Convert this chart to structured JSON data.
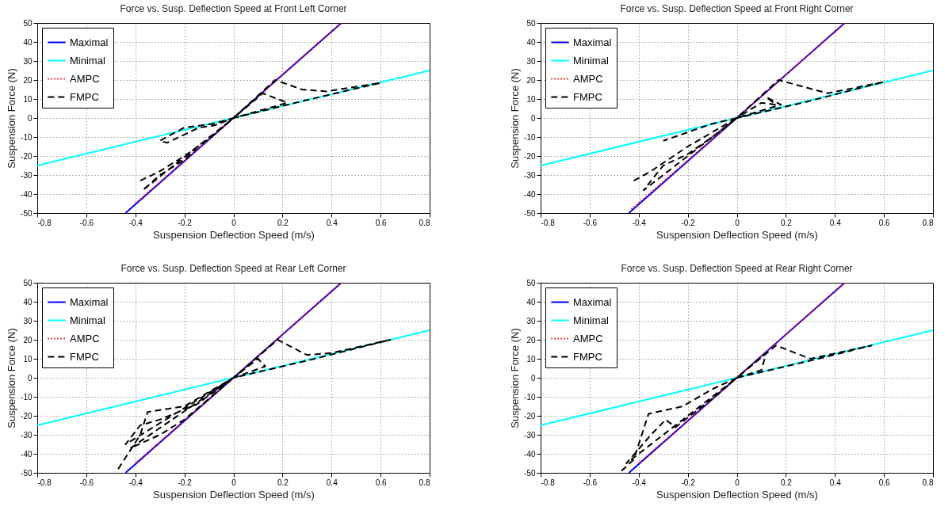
{
  "chart_data": [
    {
      "type": "line",
      "title": "Force vs. Susp. Deflection Speed at Front Left Corner",
      "xlabel": "Suspension Deflection Speed (m/s)",
      "ylabel": "Suspension Force (N)",
      "xlim": [
        -0.8,
        0.8
      ],
      "ylim": [
        -50,
        50
      ],
      "xticks": [
        -0.8,
        -0.6,
        -0.4,
        -0.2,
        0,
        0.2,
        0.4,
        0.6,
        0.8
      ],
      "yticks": [
        -50,
        -40,
        -30,
        -20,
        -10,
        0,
        10,
        20,
        30,
        40,
        50
      ],
      "grid": true,
      "legend": "top left",
      "series": [
        {
          "name": "Maximal",
          "color": "#0000ff",
          "line_style": "solid",
          "x": [
            -0.44,
            0.44
          ],
          "values": [
            -50,
            50
          ]
        },
        {
          "name": "Minimal",
          "color": "#00ffff",
          "line_style": "solid",
          "x": [
            -0.8,
            0.8
          ],
          "values": [
            -25,
            25
          ]
        },
        {
          "name": "AMPC",
          "color": "#ff0000",
          "line_style": "dotted",
          "x": [
            -0.4,
            0,
            0.44
          ],
          "values": [
            -45,
            0,
            50
          ]
        },
        {
          "name": "FMPC",
          "color": "#000000",
          "line_style": "dashed",
          "x": [
            -0.38,
            -0.3,
            -0.2,
            -0.1,
            0,
            0.17,
            0.28,
            0.38,
            0.6,
            0.3,
            0,
            0.12,
            0.22,
            0,
            -0.08,
            -0.14,
            -0.27,
            -0.3,
            -0.2,
            -0.08,
            0,
            -0.37,
            -0.3,
            -0.2,
            -0.15
          ],
          "values": [
            -33,
            -28,
            -20,
            -11,
            0,
            20,
            15,
            14,
            18.5,
            9.5,
            0,
            13,
            8,
            0,
            -4,
            -5,
            -13,
            -12,
            -5,
            -3,
            0,
            -38,
            -30,
            -22,
            -16
          ]
        }
      ]
    },
    {
      "type": "line",
      "title": "Force vs. Susp. Deflection Speed at Front Right Corner",
      "xlabel": "Suspension Deflection Speed (m/s)",
      "ylabel": "Suspension Force (N)",
      "xlim": [
        -0.8,
        0.8
      ],
      "ylim": [
        -50,
        50
      ],
      "xticks": [
        -0.8,
        -0.6,
        -0.4,
        -0.2,
        0,
        0.2,
        0.4,
        0.6,
        0.8
      ],
      "yticks": [
        -50,
        -40,
        -30,
        -20,
        -10,
        0,
        10,
        20,
        30,
        40,
        50
      ],
      "grid": true,
      "legend": "top left",
      "series": [
        {
          "name": "Maximal",
          "color": "#0000ff",
          "line_style": "solid",
          "x": [
            -0.44,
            0.44
          ],
          "values": [
            -50,
            50
          ]
        },
        {
          "name": "Minimal",
          "color": "#00ffff",
          "line_style": "solid",
          "x": [
            -0.8,
            0.8
          ],
          "values": [
            -25,
            25
          ]
        },
        {
          "name": "AMPC",
          "color": "#ff0000",
          "line_style": "dotted",
          "x": [
            -0.43,
            0,
            0.44
          ],
          "values": [
            -48,
            0,
            50
          ]
        },
        {
          "name": "FMPC",
          "color": "#000000",
          "line_style": "dashed",
          "x": [
            -0.42,
            -0.35,
            -0.2,
            0,
            0.17,
            0.37,
            0.6,
            0.3,
            0,
            0.1,
            0.16,
            0.12,
            0.18,
            0,
            -0.38,
            -0.3,
            -0.2,
            -0.1,
            0,
            -0.1,
            -0.3
          ],
          "values": [
            -33,
            -28,
            -15,
            0,
            20,
            13,
            19,
            9,
            0,
            8,
            7,
            11,
            7,
            0,
            -38,
            -25,
            -19,
            -10,
            0,
            -3,
            -12
          ]
        }
      ]
    },
    {
      "type": "line",
      "title": "Force vs. Susp. Deflection Speed at Rear Left Corner",
      "xlabel": "Suspension Deflection Speed (m/s)",
      "ylabel": "Suspension Force (N)",
      "xlim": [
        -0.8,
        0.8
      ],
      "ylim": [
        -50,
        50
      ],
      "xticks": [
        -0.8,
        -0.6,
        -0.4,
        -0.2,
        0,
        0.2,
        0.4,
        0.6,
        0.8
      ],
      "yticks": [
        -50,
        -40,
        -30,
        -20,
        -10,
        0,
        10,
        20,
        30,
        40,
        50
      ],
      "grid": true,
      "legend": "top left",
      "series": [
        {
          "name": "Maximal",
          "color": "#0000ff",
          "line_style": "solid",
          "x": [
            -0.44,
            0.44
          ],
          "values": [
            -50,
            50
          ]
        },
        {
          "name": "Minimal",
          "color": "#00ffff",
          "line_style": "solid",
          "x": [
            -0.8,
            0.8
          ],
          "values": [
            -25,
            25
          ]
        },
        {
          "name": "AMPC",
          "color": "#ff0000",
          "line_style": "dotted",
          "x": [
            -0.4,
            0,
            0.44
          ],
          "values": [
            -45,
            0,
            50
          ]
        },
        {
          "name": "FMPC",
          "color": "#000000",
          "line_style": "dashed",
          "x": [
            -0.47,
            -0.38,
            -0.35,
            -0.2,
            0,
            0.18,
            0.3,
            0.4,
            0.64,
            0.3,
            0,
            0.1,
            0.13,
            0,
            -0.42,
            -0.3,
            -0.2,
            0,
            -0.44,
            -0.38,
            -0.3,
            -0.15,
            0
          ],
          "values": [
            -48,
            -30,
            -18,
            -15,
            0,
            20,
            12,
            13,
            20,
            9,
            0,
            10,
            6,
            0,
            -37,
            -30,
            -22,
            0,
            -35,
            -25,
            -22,
            -14,
            0
          ]
        }
      ]
    },
    {
      "type": "line",
      "title": "Force vs. Susp. Deflection Speed at Rear Right Corner",
      "xlabel": "Suspension Deflection Speed (m/s)",
      "ylabel": "Suspension Force (N)",
      "xlim": [
        -0.8,
        0.8
      ],
      "ylim": [
        -50,
        50
      ],
      "xticks": [
        -0.8,
        -0.6,
        -0.4,
        -0.2,
        0,
        0.2,
        0.4,
        0.6,
        0.8
      ],
      "yticks": [
        -50,
        -40,
        -30,
        -20,
        -10,
        0,
        10,
        20,
        30,
        40,
        50
      ],
      "grid": true,
      "legend": "top left",
      "series": [
        {
          "name": "Maximal",
          "color": "#0000ff",
          "line_style": "solid",
          "x": [
            -0.44,
            0.44
          ],
          "values": [
            -50,
            50
          ]
        },
        {
          "name": "Minimal",
          "color": "#00ffff",
          "line_style": "solid",
          "x": [
            -0.8,
            0.8
          ],
          "values": [
            -25,
            25
          ]
        },
        {
          "name": "AMPC",
          "color": "#ff0000",
          "line_style": "dotted",
          "x": [
            -0.4,
            0,
            0.44
          ],
          "values": [
            -45,
            0,
            50
          ]
        },
        {
          "name": "FMPC",
          "color": "#000000",
          "line_style": "dashed",
          "x": [
            -0.47,
            -0.42,
            -0.36,
            -0.22,
            -0.1,
            0,
            0.16,
            0.3,
            0.55,
            0.3,
            0,
            0.12,
            0.1,
            0,
            -0.45,
            -0.35,
            -0.29,
            -0.25,
            -0.1,
            0
          ],
          "values": [
            -49,
            -43,
            -19,
            -15,
            -6,
            0,
            17,
            10,
            17,
            9,
            0,
            13,
            4,
            0,
            -45,
            -30,
            -22,
            -26,
            -11,
            0
          ]
        }
      ]
    }
  ]
}
